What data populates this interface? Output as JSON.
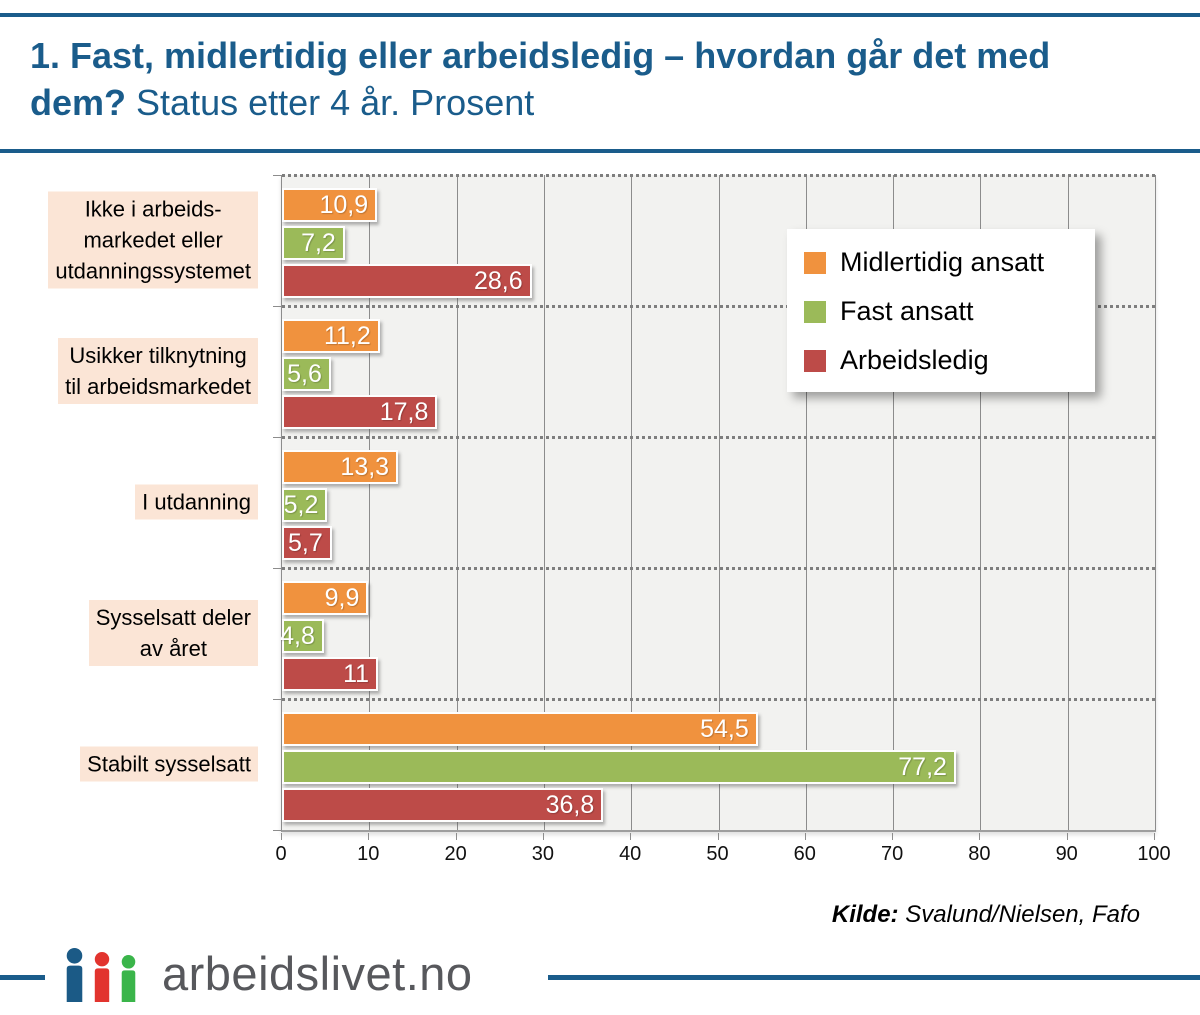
{
  "page": {
    "title_bold": "1. Fast, midlertidig eller arbeidsledig – hvordan går det med dem?",
    "title_regular": "Status etter 4 år. Prosent"
  },
  "chart_data": {
    "type": "bar",
    "orientation": "horizontal",
    "title": "1. Fast, midlertidig eller arbeidsledig – hvordan går det med dem? Status etter 4 år. Prosent",
    "categories": [
      {
        "label": "Ikke i arbeidsmarkedet eller utdanningssystemet",
        "lines": [
          "Ikke i arbeids-",
          "markedet eller",
          "utdanningssystemet"
        ]
      },
      {
        "label": "Usikker tilknytning til arbeidsmarkedet",
        "lines": [
          "Usikker tilknytning",
          "til arbeidsmarkedet"
        ]
      },
      {
        "label": "I utdanning",
        "lines": [
          "I utdanning"
        ]
      },
      {
        "label": "Sysselsatt deler av året",
        "lines": [
          "Sysselsatt deler",
          "av året"
        ]
      },
      {
        "label": "Stabilt sysselsatt",
        "lines": [
          "Stabilt sysselsatt"
        ]
      }
    ],
    "series": [
      {
        "name": "Midlertidig ansatt",
        "color": "#F0923E",
        "values": [
          10.9,
          11.2,
          13.3,
          9.9,
          54.5
        ],
        "labels": [
          "10,9",
          "11,2",
          "13,3",
          "9,9",
          "54,5"
        ]
      },
      {
        "name": "Fast ansatt",
        "color": "#9BBA59",
        "values": [
          7.2,
          5.6,
          5.2,
          4.8,
          77.2
        ],
        "labels": [
          "7,2",
          "5,6",
          "5,2",
          "4,8",
          "77,2"
        ]
      },
      {
        "name": "Arbeidsledig",
        "color": "#BD4B48",
        "values": [
          28.6,
          17.8,
          5.7,
          11,
          36.8
        ],
        "labels": [
          "28,6",
          "17,8",
          "5,7",
          "11",
          "36,8"
        ]
      }
    ],
    "xlim": [
      0,
      100
    ],
    "x_ticks": [
      "0",
      "10",
      "20",
      "30",
      "40",
      "50",
      "60",
      "70",
      "80",
      "90",
      "100"
    ],
    "legend_position": "top-right",
    "grid": "vertical solid gridlines every 10; dotted horizontal category separators",
    "plot_background": "#F2F2F0",
    "category_label_background": "#FBE5D6"
  },
  "source": {
    "label": "Kilde:",
    "text": "Svalund/Nielsen, Fafo"
  },
  "footer": {
    "brand": "arbeidslivet.no",
    "logo_colors": {
      "blue": "#1B5A86",
      "red": "#E2342E",
      "green": "#3AB54A"
    }
  },
  "colors": {
    "accent_blue": "#1A5C8B",
    "orange": "#F0923E",
    "green": "#9BBA59",
    "red": "#BD4B48",
    "label_bg": "#FBE5D6",
    "wordmark_gray": "#57585C"
  }
}
